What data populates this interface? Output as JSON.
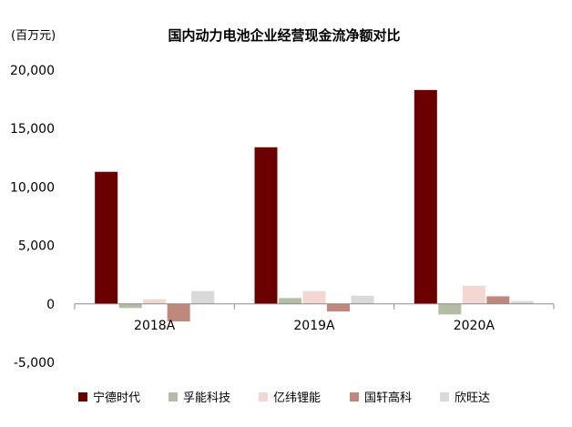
{
  "chart_data": {
    "type": "bar",
    "title": "国内动力电池企业经营现金流净额对比",
    "unit_label": "(百万元)",
    "categories": [
      "2018A",
      "2019A",
      "2020A"
    ],
    "ylim": [
      -5000,
      20000
    ],
    "yticks": [
      -5000,
      0,
      5000,
      10000,
      15000,
      20000
    ],
    "ytick_labels": [
      "-5,000",
      "0",
      "5,000",
      "10,000",
      "15,000",
      "20,000"
    ],
    "grid": false,
    "legend_position": "bottom",
    "series": [
      {
        "name": "宁德时代",
        "color": "#6b0000",
        "values": [
          11300,
          13400,
          18300
        ]
      },
      {
        "name": "孚能科技",
        "color": "#b3bca4",
        "values": [
          -350,
          500,
          -900
        ]
      },
      {
        "name": "亿纬锂能",
        "color": "#f2d7d2",
        "values": [
          400,
          1100,
          1550
        ]
      },
      {
        "name": "国轩高科",
        "color": "#c0877d",
        "values": [
          -1500,
          -650,
          650
        ]
      },
      {
        "name": "欣旺达",
        "color": "#d9d9d9",
        "values": [
          1100,
          700,
          250
        ]
      }
    ]
  }
}
